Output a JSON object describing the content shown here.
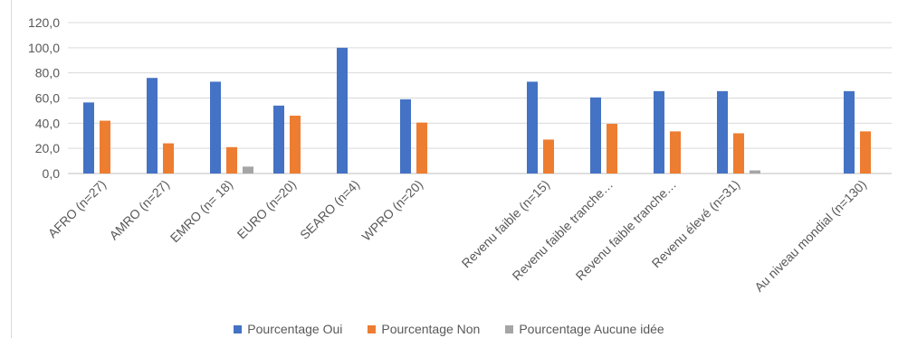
{
  "chart_data": {
    "type": "bar",
    "categories": [
      "AFRO (n=27)",
      "AMRO (n=27)",
      "EMRO (n= 18)",
      "EURO (n=20)",
      "SEARO (n=4)",
      "WPRO (n=20)",
      "",
      "Revenu faible (n=15)",
      "Revenu faible tranche…",
      "Revenu faible tranche…",
      "Revenu élevé (n=31)",
      "",
      "Au niveau mondial (n=130)"
    ],
    "series": [
      {
        "name": "Pourcentage Oui",
        "color": "#4472c4",
        "values": [
          56.5,
          76.0,
          73.0,
          54.0,
          100.0,
          59.0,
          null,
          73.0,
          60.5,
          65.5,
          65.5,
          null,
          65.5
        ]
      },
      {
        "name": "Pourcentage Non",
        "color": "#ed7d31",
        "values": [
          42.0,
          24.0,
          21.0,
          46.0,
          0,
          40.5,
          null,
          27.0,
          39.5,
          33.5,
          32.0,
          null,
          33.5
        ]
      },
      {
        "name": "Pourcentage Aucune idée",
        "color": "#a5a5a5",
        "values": [
          0,
          0,
          5.5,
          0,
          0,
          0,
          null,
          0,
          0,
          0,
          2.5,
          null,
          0
        ]
      }
    ],
    "yticks": [
      "0,0",
      "20,0",
      "40,0",
      "60,0",
      "80,0",
      "100,0",
      "120,0"
    ],
    "ylim": [
      0,
      120
    ],
    "grid": true,
    "legend_position": "bottom"
  }
}
